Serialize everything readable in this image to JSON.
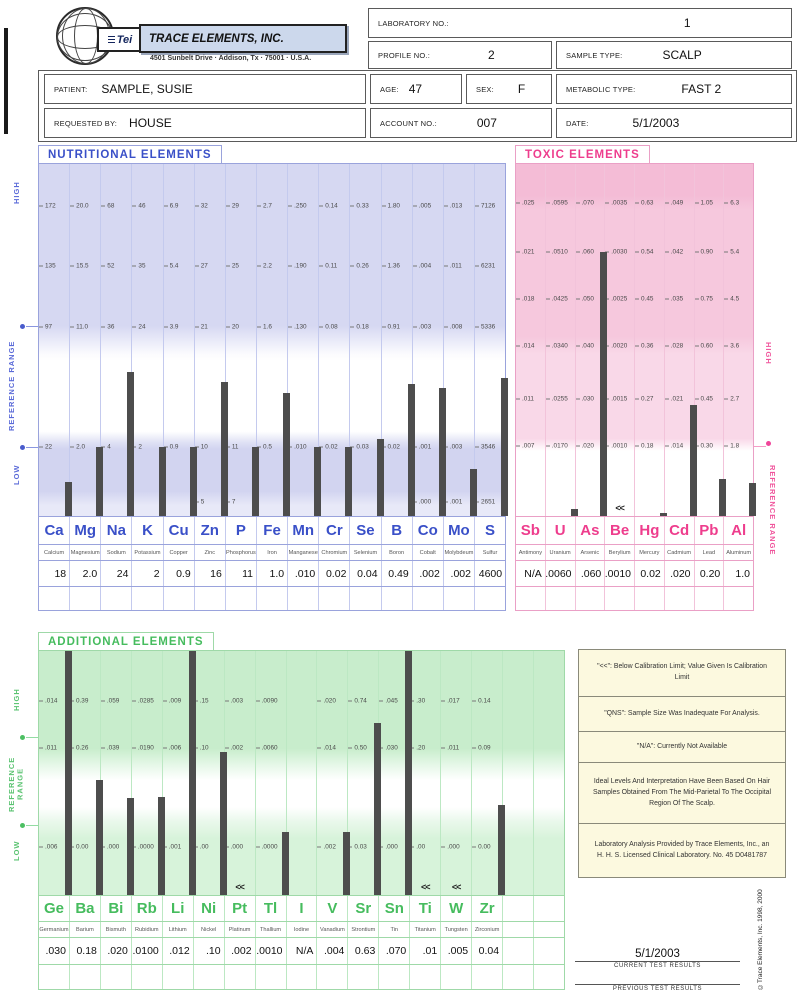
{
  "header": {
    "logo": {
      "mark": "Tei",
      "company": "TRACE ELEMENTS, INC.",
      "address": "4501 Sunbelt Drive · Addison, Tx · 75001 · U.S.A."
    },
    "laboratory_no": {
      "label": "LABORATORY NO.:",
      "value": "1"
    },
    "profile_no": {
      "label": "PROFILE NO.:",
      "value": "2"
    },
    "sample_type": {
      "label": "SAMPLE TYPE:",
      "value": "SCALP"
    },
    "patient": {
      "label": "PATIENT:",
      "value": "SAMPLE, SUSIE"
    },
    "age": {
      "label": "AGE:",
      "value": "47"
    },
    "sex": {
      "label": "SEX:",
      "value": "F"
    },
    "metabolic_type": {
      "label": "METABOLIC TYPE:",
      "value": "FAST 2"
    },
    "requested_by": {
      "label": "REQUESTED BY:",
      "value": "HOUSE"
    },
    "account_no": {
      "label": "ACCOUNT NO.:",
      "value": "007"
    },
    "date": {
      "label": "DATE:",
      "value": "5/1/2003"
    }
  },
  "marks": {
    "below_limit": "<<"
  },
  "sections": {
    "nutritional": {
      "title": "NUTRITIONAL ELEMENTS",
      "accent": "#3a50c8",
      "type": "bar",
      "side_labels": {
        "high": "HIGH",
        "reference": "REFERENCE RANGE",
        "low": "LOW"
      },
      "total_columns": 15,
      "tick_rows_pct": [
        11.9,
        29.1,
        46.3,
        80.5
      ],
      "low_tick_pct": 96,
      "elements": [
        {
          "symbol": "Ca",
          "name": "Calcium",
          "value": "18",
          "ticks": [
            "172",
            "135",
            "97",
            "22"
          ],
          "bar_pct": 9.6
        },
        {
          "symbol": "Mg",
          "name": "Magnesium",
          "value": "2.0",
          "ticks": [
            "20.0",
            "15.5",
            "11.0",
            "2.0"
          ],
          "bar_pct": 19.5
        },
        {
          "symbol": "Na",
          "name": "Sodium",
          "value": "24",
          "ticks": [
            "68",
            "52",
            "36",
            "4"
          ],
          "bar_pct": 41.0
        },
        {
          "symbol": "K",
          "name": "Potassium",
          "value": "2",
          "ticks": [
            "46",
            "35",
            "24",
            "2"
          ],
          "bar_pct": 19.5
        },
        {
          "symbol": "Cu",
          "name": "Copper",
          "value": "0.9",
          "ticks": [
            "6.9",
            "5.4",
            "3.9",
            "0.9"
          ],
          "bar_pct": 19.5
        },
        {
          "symbol": "Zn",
          "name": "Zinc",
          "value": "16",
          "ticks": [
            "32",
            "27",
            "21",
            "10"
          ],
          "low_tick": "5",
          "bar_pct": 38.1
        },
        {
          "symbol": "P",
          "name": "Phosphorus",
          "value": "11",
          "ticks": [
            "29",
            "25",
            "20",
            "11"
          ],
          "low_tick": "7",
          "bar_pct": 19.5
        },
        {
          "symbol": "Fe",
          "name": "Iron",
          "value": "1.0",
          "ticks": [
            "2.7",
            "2.2",
            "1.6",
            "0.5"
          ],
          "bar_pct": 35.0
        },
        {
          "symbol": "Mn",
          "name": "Manganese",
          "value": ".010",
          "ticks": [
            ".250",
            ".190",
            ".130",
            ".010"
          ],
          "bar_pct": 19.5
        },
        {
          "symbol": "Cr",
          "name": "Chromium",
          "value": "0.02",
          "ticks": [
            "0.14",
            "0.11",
            "0.08",
            "0.02"
          ],
          "bar_pct": 19.5
        },
        {
          "symbol": "Se",
          "name": "Selenium",
          "value": "0.04",
          "ticks": [
            "0.33",
            "0.26",
            "0.18",
            "0.03"
          ],
          "bar_pct": 21.8
        },
        {
          "symbol": "B",
          "name": "Boron",
          "value": "0.49",
          "ticks": [
            "1.80",
            "1.36",
            "0.91",
            "0.02"
          ],
          "bar_pct": 37.6
        },
        {
          "symbol": "Co",
          "name": "Cobalt",
          "value": ".002",
          "ticks": [
            ".005",
            ".004",
            ".003",
            ".001"
          ],
          "low_tick": ".000",
          "bar_pct": 36.4
        },
        {
          "symbol": "Mo",
          "name": "Molybdeum",
          "value": ".002",
          "ticks": [
            ".013",
            ".011",
            ".008",
            ".003"
          ],
          "low_tick": ".001",
          "bar_pct": 13.3
        },
        {
          "symbol": "S",
          "name": "Sulfur",
          "value": "4600",
          "ticks": [
            "7126",
            "6231",
            "5336",
            "3546"
          ],
          "low_tick": "2651",
          "bar_pct": 39.3
        }
      ]
    },
    "toxic": {
      "title": "TOXIC ELEMENTS",
      "accent": "#ee3d8d",
      "type": "bar",
      "side_labels": {
        "high": "HIGH",
        "reference": "REFERENCE RANGE"
      },
      "total_columns": 8,
      "tick_rows_pct": [
        11.0,
        24.9,
        38.4,
        51.7,
        66.7,
        80.2
      ],
      "low_tick_pct": 96,
      "elements": [
        {
          "symbol": "Sb",
          "name": "Antimony",
          "value": "N/A",
          "ticks": [
            ".025",
            ".021",
            ".018",
            ".014",
            ".011",
            ".007"
          ],
          "bar_pct": 0
        },
        {
          "symbol": "U",
          "name": "Uranium",
          "value": ".0060",
          "ticks": [
            ".0595",
            ".0510",
            ".0425",
            ".0340",
            ".0255",
            ".0170"
          ],
          "bar_pct": 2.0
        },
        {
          "symbol": "As",
          "name": "Arsenic",
          "value": ".060",
          "ticks": [
            ".070",
            ".060",
            ".050",
            ".040",
            ".030",
            ".020"
          ],
          "bar_pct": 75.1
        },
        {
          "symbol": "Be",
          "name": "Berylium",
          "value": ".0010",
          "ticks": [
            ".0035",
            ".0030",
            ".0025",
            ".0020",
            ".0015",
            ".0010"
          ],
          "bar_pct": 0,
          "below_limit": true
        },
        {
          "symbol": "Hg",
          "name": "Mercury",
          "value": "0.02",
          "ticks": [
            "0.63",
            "0.54",
            "0.45",
            "0.36",
            "0.27",
            "0.18"
          ],
          "bar_pct": 0.8
        },
        {
          "symbol": "Cd",
          "name": "Cadmium",
          "value": ".020",
          "ticks": [
            ".049",
            ".042",
            ".035",
            ".028",
            ".021",
            ".014"
          ],
          "bar_pct": 31.6
        },
        {
          "symbol": "Pb",
          "name": "Lead",
          "value": "0.20",
          "ticks": [
            "1.05",
            "0.90",
            "0.75",
            "0.60",
            "0.45",
            "0.30"
          ],
          "bar_pct": 10.5
        },
        {
          "symbol": "Al",
          "name": "Aluminum",
          "value": "1.0",
          "ticks": [
            "6.3",
            "5.4",
            "4.5",
            "3.6",
            "2.7",
            "1.8"
          ],
          "bar_pct": 9.3
        }
      ]
    },
    "additional": {
      "title": "ADDITIONAL ELEMENTS",
      "accent": "#46bc5e",
      "type": "bar",
      "side_labels": {
        "high": "HIGH",
        "reference": "REFERENCE RANGE",
        "low": "LOW"
      },
      "total_columns": 17,
      "tick_rows_pct": [
        20.3,
        39.8,
        80.5
      ],
      "low_tick_pct": 96,
      "elements": [
        {
          "symbol": "Ge",
          "name": "Germanium",
          "value": ".030",
          "ticks": [
            ".014",
            ".011",
            ".006"
          ],
          "bar_pct": 100
        },
        {
          "symbol": "Ba",
          "name": "Barium",
          "value": "0.18",
          "ticks": [
            "0.39",
            "0.26",
            "0.00"
          ],
          "bar_pct": 47.2
        },
        {
          "symbol": "Bi",
          "name": "Bismuth",
          "value": ".020",
          "ticks": [
            ".059",
            ".039",
            ".000"
          ],
          "bar_pct": 39.8
        },
        {
          "symbol": "Rb",
          "name": "Rubidium",
          "value": ".0100",
          "ticks": [
            ".0285",
            ".0190",
            ".0000"
          ],
          "bar_pct": 40.2
        },
        {
          "symbol": "Li",
          "name": "Lithium",
          "value": ".012",
          "ticks": [
            ".009",
            ".006",
            ".001"
          ],
          "bar_pct": 100
        },
        {
          "symbol": "Ni",
          "name": "Nickel",
          "value": ".10",
          "ticks": [
            ".15",
            ".10",
            ".00"
          ],
          "bar_pct": 58.5
        },
        {
          "symbol": "Pt",
          "name": "Platinum",
          "value": ".002",
          "ticks": [
            ".003",
            ".002",
            ".000"
          ],
          "bar_pct": 0,
          "below_limit": true
        },
        {
          "symbol": "Tl",
          "name": "Thallium",
          "value": ".0010",
          "ticks": [
            ".0090",
            ".0060",
            ".0000"
          ],
          "bar_pct": 26.0
        },
        {
          "symbol": "I",
          "name": "Iodine",
          "value": "N/A",
          "ticks": [
            "",
            "",
            ""
          ],
          "bar_pct": 0
        },
        {
          "symbol": "V",
          "name": "Vanadium",
          "value": ".004",
          "ticks": [
            ".020",
            ".014",
            ".002"
          ],
          "bar_pct": 26.0
        },
        {
          "symbol": "Sr",
          "name": "Strontium",
          "value": "0.63",
          "ticks": [
            "0.74",
            "0.50",
            "0.03"
          ],
          "bar_pct": 70.3
        },
        {
          "symbol": "Sn",
          "name": "Tin",
          "value": ".070",
          "ticks": [
            ".045",
            ".030",
            ".000"
          ],
          "bar_pct": 100
        },
        {
          "symbol": "Ti",
          "name": "Titanium",
          "value": ".01",
          "ticks": [
            ".30",
            ".20",
            ".00"
          ],
          "bar_pct": 0,
          "below_limit": true
        },
        {
          "symbol": "W",
          "name": "Tungsten",
          "value": ".005",
          "ticks": [
            ".017",
            ".011",
            ".000"
          ],
          "bar_pct": 0,
          "below_limit": true
        },
        {
          "symbol": "Zr",
          "name": "Zirconium",
          "value": "0.04",
          "ticks": [
            "0.14",
            "0.09",
            "0.00"
          ],
          "bar_pct": 37.0
        }
      ]
    }
  },
  "notes": [
    "\"<<\": Below Calibration Limit; Value Given Is Calibration Limit",
    "\"QNS\": Sample Size Was Inadequate For Analysis.",
    "\"N/A\": Currently Not Available",
    "Ideal Levels And Interpretation Have Been Based On Hair Samples Obtained From The Mid-Parietal To The Occipital Region Of The Scalp.",
    "Laboratory Analysis Provided by Trace Elements, Inc., an H. H. S. Licensed Clinical Laboratory.    No. 45 D0481787"
  ],
  "footer": {
    "current_date": "5/1/2003",
    "current_label": "CURRENT TEST RESULTS",
    "previous_label": "PREVIOUS TEST RESULTS",
    "copyright": "©Trace Elements, Inc. 1998, 2000"
  }
}
